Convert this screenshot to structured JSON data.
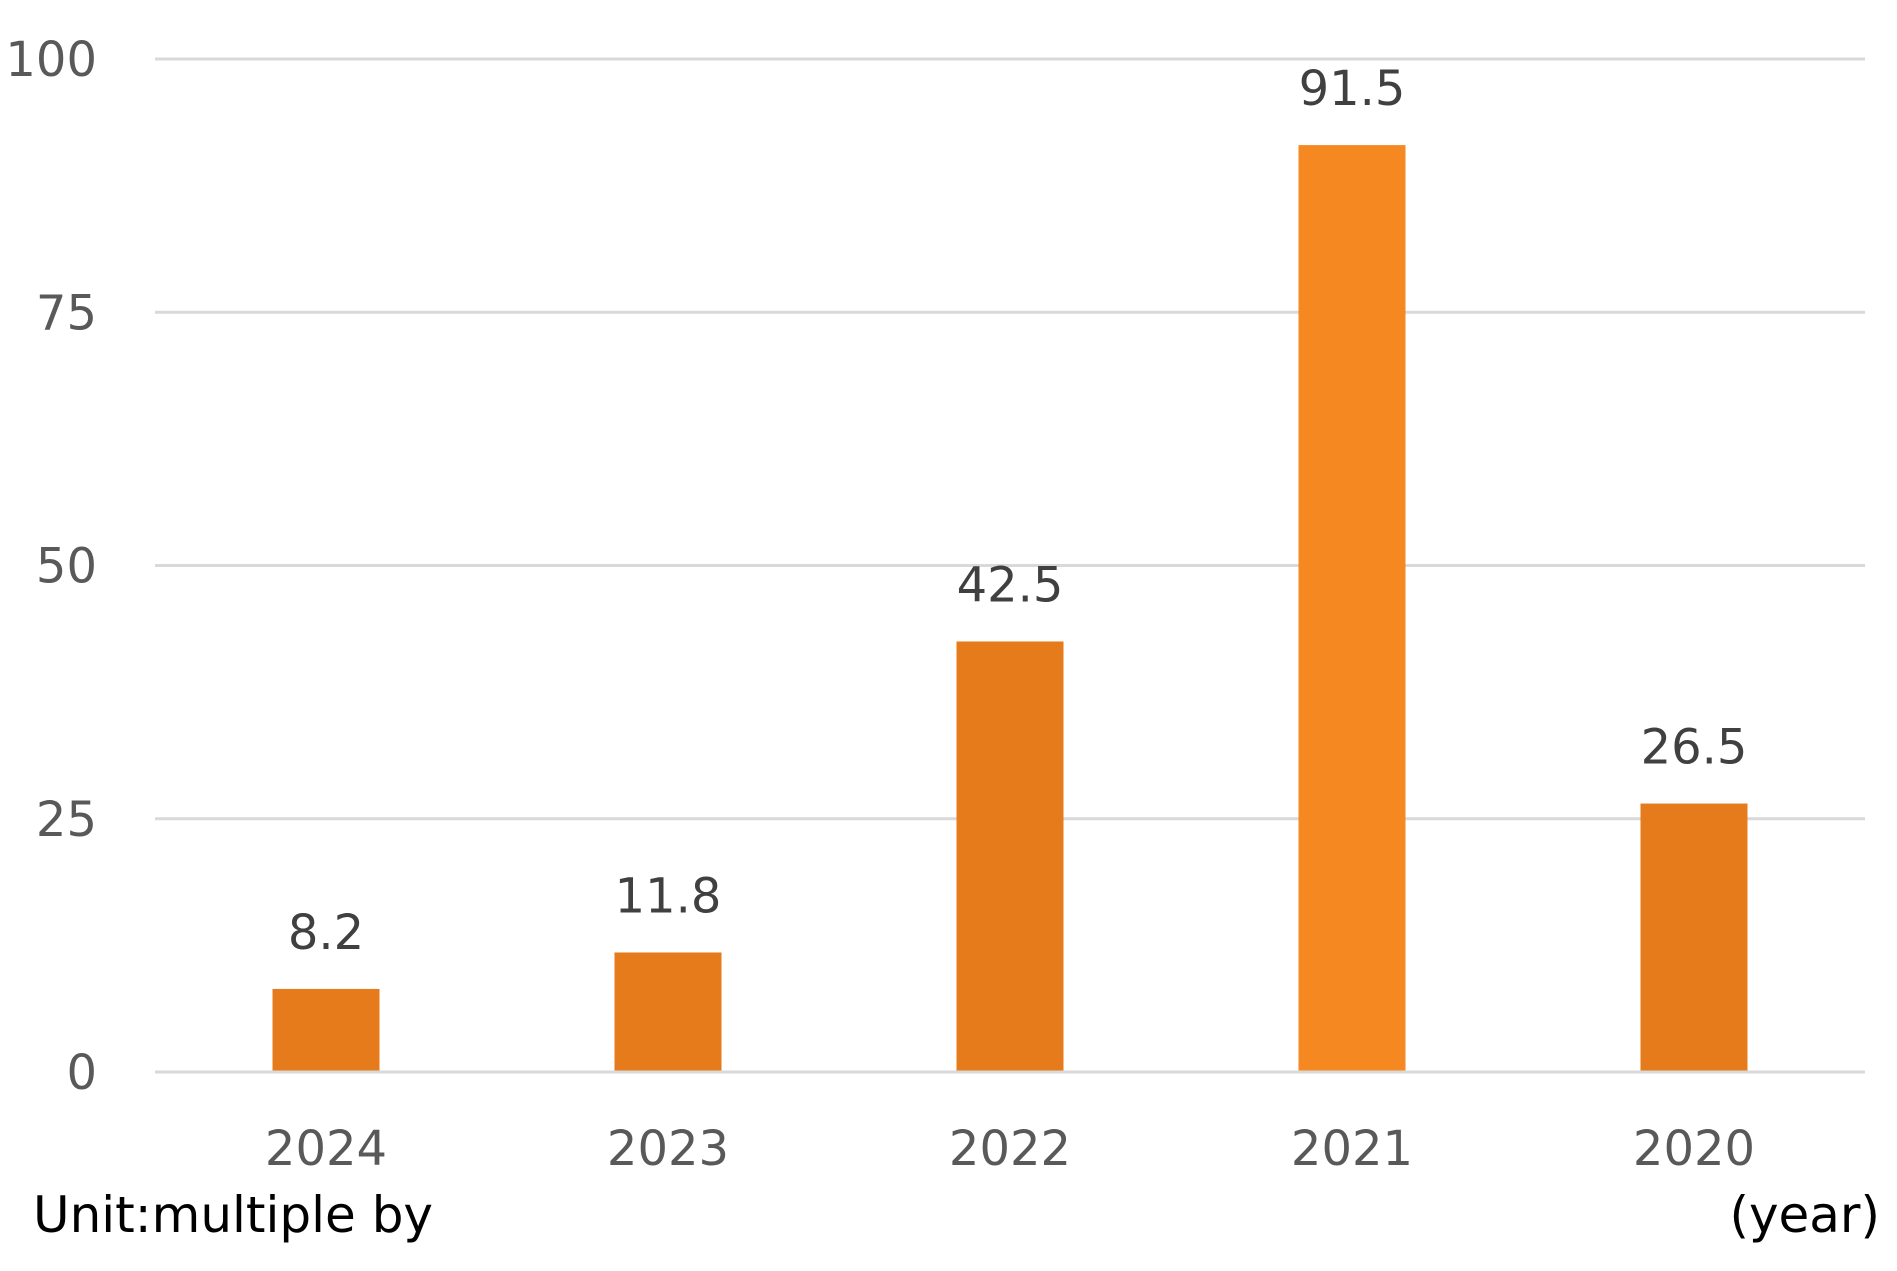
{
  "chart_data": {
    "type": "bar",
    "categories": [
      "2024",
      "2023",
      "2022",
      "2021",
      "2020"
    ],
    "values": [
      8.2,
      11.8,
      42.5,
      91.5,
      26.5
    ],
    "data_labels": [
      "8.2",
      "11.8",
      "42.5",
      "91.5",
      "26.5"
    ],
    "ylim": [
      0,
      100
    ],
    "yticks": [
      0,
      25,
      50,
      75,
      100
    ],
    "grid": true,
    "legend": "none",
    "bar_colors": [
      "#e57b1b",
      "#e57b1b",
      "#e57b1b",
      "#f58820",
      "#e57b1b"
    ],
    "grid_color": "#d9d9d9"
  },
  "unit_label": "Unit:multiple by",
  "x_unit_label": "(year)"
}
